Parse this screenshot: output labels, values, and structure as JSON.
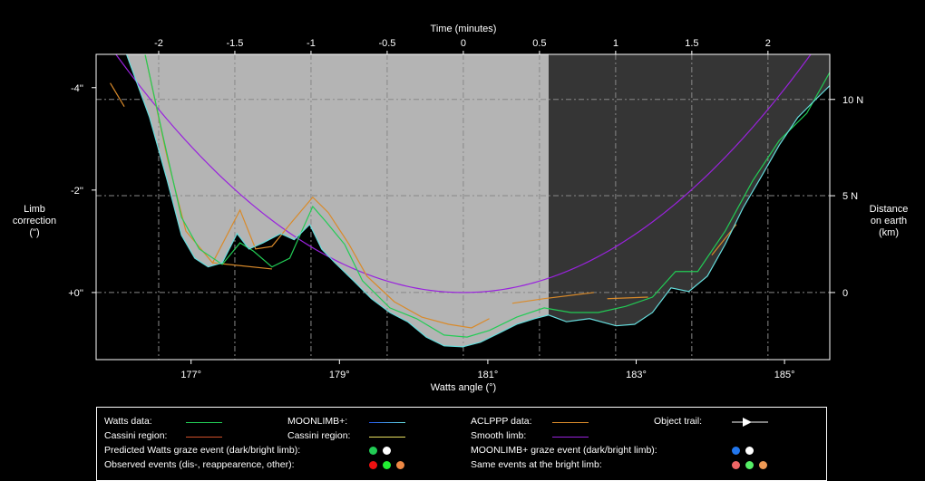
{
  "chart_data": {
    "type": "line",
    "title": "",
    "xlabel": "Watts angle (°)",
    "x2label": "Time (minutes)",
    "ylabel": "Limb\ncorrection\n(\")",
    "y2label": "Distance\non earth\n(km)",
    "xlim": [
      175.72,
      185.61
    ],
    "ylim": [
      -4.65,
      1.31
    ],
    "x_ticks": [
      "177°",
      "179°",
      "181°",
      "183°",
      "185°"
    ],
    "x_tick_values": [
      177,
      179,
      181,
      183,
      185
    ],
    "time_ticks": [
      "-2",
      "-1.5",
      "-1",
      "-0.5",
      "0",
      "0.5",
      "1",
      "1.5",
      "2"
    ],
    "time_tick_values": [
      -2,
      -1.5,
      -1,
      -0.5,
      0,
      0.5,
      1,
      1.5,
      2
    ],
    "time_zero_angle": 180.67,
    "minutes_per_degree": 0.487,
    "y_ticks": [
      "-4''",
      "-2''",
      "+0''"
    ],
    "y_tick_values": [
      -4,
      -2,
      0
    ],
    "km_ticks": [
      "10 N",
      "5 N",
      "0"
    ],
    "km_tick_values": [
      -3.77,
      -1.89,
      0
    ],
    "bright_limb_start_angle": 181.82,
    "colors": {
      "light_region": "#b4b4b4",
      "dark_region": "#353535",
      "watts": "#22cc55",
      "moonlimb": "#66dddd",
      "aclppp": "#d98a2a",
      "smooth": "#9922dd",
      "grid": "#888888"
    },
    "series": [
      {
        "name": "MOONLIMB+",
        "color": "#66dddd",
        "points": [
          [
            176.13,
            -4.65
          ],
          [
            176.44,
            -3.42
          ],
          [
            176.68,
            -2.18
          ],
          [
            176.87,
            -1.12
          ],
          [
            177.05,
            -0.67
          ],
          [
            177.23,
            -0.5
          ],
          [
            177.42,
            -0.58
          ],
          [
            177.62,
            -1.15
          ],
          [
            177.78,
            -0.85
          ],
          [
            177.97,
            -0.97
          ],
          [
            178.21,
            -1.15
          ],
          [
            178.39,
            -1.03
          ],
          [
            178.6,
            -1.33
          ],
          [
            178.76,
            -0.85
          ],
          [
            178.94,
            -0.58
          ],
          [
            179.19,
            -0.23
          ],
          [
            179.43,
            0.12
          ],
          [
            179.68,
            0.39
          ],
          [
            179.92,
            0.57
          ],
          [
            180.17,
            0.87
          ],
          [
            180.41,
            1.04
          ],
          [
            180.66,
            1.06
          ],
          [
            180.9,
            0.97
          ],
          [
            181.14,
            0.8
          ],
          [
            181.39,
            0.62
          ],
          [
            181.63,
            0.51
          ],
          [
            181.82,
            0.44
          ],
          [
            182.06,
            0.57
          ],
          [
            182.37,
            0.51
          ],
          [
            182.73,
            0.65
          ],
          [
            182.98,
            0.62
          ],
          [
            183.22,
            0.39
          ],
          [
            183.47,
            -0.09
          ],
          [
            183.71,
            -0.02
          ],
          [
            183.96,
            -0.32
          ],
          [
            184.2,
            -0.94
          ],
          [
            184.44,
            -1.65
          ],
          [
            184.69,
            -2.27
          ],
          [
            184.93,
            -2.88
          ],
          [
            185.18,
            -3.42
          ],
          [
            185.42,
            -3.77
          ],
          [
            185.61,
            -4.04
          ]
        ]
      },
      {
        "name": "Watts data",
        "color": "#22cc55",
        "points": [
          [
            176.38,
            -4.65
          ],
          [
            176.62,
            -3.06
          ],
          [
            176.87,
            -1.47
          ],
          [
            177.11,
            -0.85
          ],
          [
            177.42,
            -0.55
          ],
          [
            177.66,
            -0.97
          ],
          [
            177.84,
            -0.81
          ],
          [
            178.09,
            -0.5
          ],
          [
            178.33,
            -0.67
          ],
          [
            178.64,
            -1.68
          ],
          [
            178.82,
            -1.38
          ],
          [
            179.07,
            -0.94
          ],
          [
            179.31,
            -0.23
          ],
          [
            179.68,
            0.3
          ],
          [
            180.04,
            0.51
          ],
          [
            180.41,
            0.83
          ],
          [
            180.72,
            0.87
          ],
          [
            181.02,
            0.74
          ],
          [
            181.39,
            0.48
          ],
          [
            181.76,
            0.3
          ],
          [
            182.12,
            0.39
          ],
          [
            182.49,
            0.39
          ],
          [
            182.86,
            0.27
          ],
          [
            183.22,
            0.09
          ],
          [
            183.53,
            -0.41
          ],
          [
            183.83,
            -0.41
          ],
          [
            184.2,
            -1.2
          ],
          [
            184.57,
            -2.18
          ],
          [
            184.93,
            -2.97
          ],
          [
            185.3,
            -3.5
          ],
          [
            185.61,
            -4.3
          ]
        ]
      },
      {
        "name": "ACLPPP data",
        "color": "#d98a2a",
        "segments": [
          [
            [
              175.91,
              -4.09
            ],
            [
              176.1,
              -3.63
            ]
          ],
          [
            [
              176.38,
              -4.65
            ],
            [
              176.68,
              -2.62
            ],
            [
              176.93,
              -1.2
            ],
            [
              177.29,
              -0.58
            ],
            [
              177.66,
              -1.61
            ],
            [
              177.87,
              -0.85
            ],
            [
              178.09,
              -0.9
            ],
            [
              178.36,
              -1.38
            ],
            [
              178.64,
              -1.86
            ],
            [
              178.85,
              -1.56
            ],
            [
              179.13,
              -0.94
            ],
            [
              179.37,
              -0.32
            ],
            [
              179.74,
              0.18
            ],
            [
              180.11,
              0.48
            ],
            [
              180.47,
              0.62
            ],
            [
              180.78,
              0.69
            ],
            [
              181.02,
              0.51
            ]
          ],
          [
            [
              177.29,
              -0.58
            ],
            [
              178.09,
              -0.46
            ]
          ],
          [
            [
              181.33,
              0.21
            ],
            [
              181.76,
              0.12
            ],
            [
              182.43,
              0.0
            ]
          ],
          [
            [
              182.61,
              0.12
            ],
            [
              183.16,
              0.09
            ]
          ],
          [
            [
              184.02,
              -0.73
            ],
            [
              184.35,
              -1.33
            ]
          ]
        ]
      },
      {
        "name": "Smooth limb",
        "color": "#9922dd",
        "parabola": {
          "vertex_angle": 180.67,
          "vertex_value": 0,
          "curvature": 0.212
        }
      }
    ]
  },
  "legend": {
    "watts": "Watts data:",
    "moonlimb": "MOONLIMB+:",
    "aclppp": "ACLPPP data:",
    "trail": "Object trail:",
    "cassini1": "Cassini region:",
    "cassini2": "Cassini region:",
    "smooth": "Smooth limb:",
    "pred_watts": "Predicted Watts graze event (dark/bright limb):",
    "pred_moonlimb": "MOONLIMB+ graze event (dark/bright limb):",
    "observed": "Observed events (dis-, reappearence, other):",
    "bright": "Same events at the bright limb:"
  }
}
